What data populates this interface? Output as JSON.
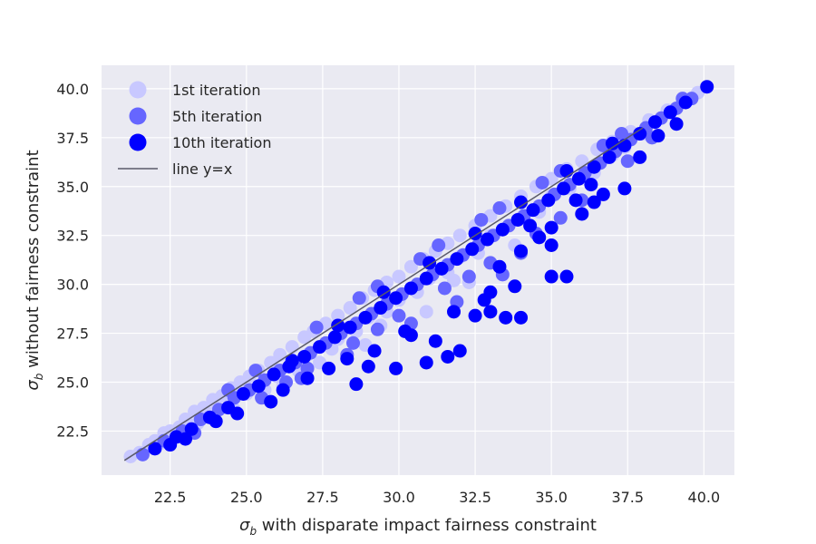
{
  "chart_data": {
    "type": "scatter",
    "title": "",
    "xlabel": "with disparate impact fairness constraint",
    "ylabel": "without fairness constraint",
    "axis_symbol": "σ",
    "axis_symbol_sub": "b",
    "xlim": [
      20.25,
      41.0
    ],
    "ylim": [
      20.25,
      41.2
    ],
    "xticks": [
      "22.5",
      "25.0",
      "27.5",
      "30.0",
      "32.5",
      "35.0",
      "37.5",
      "40.0"
    ],
    "yticks": [
      "22.5",
      "25.0",
      "27.5",
      "30.0",
      "32.5",
      "35.0",
      "37.5",
      "40.0"
    ],
    "grid": true,
    "legend_position": "top-left",
    "reference_line": {
      "name": "line y=x",
      "from": [
        21.0,
        21.0
      ],
      "to": [
        38.0,
        38.0
      ],
      "color": "#5a5a6a"
    },
    "series": [
      {
        "name": "1st iteration",
        "color": "#c8c8ff",
        "points": [
          [
            21.2,
            21.2
          ],
          [
            21.5,
            21.4
          ],
          [
            21.8,
            21.8
          ],
          [
            22.0,
            22.0
          ],
          [
            22.3,
            22.4
          ],
          [
            22.5,
            22.5
          ],
          [
            22.8,
            22.7
          ],
          [
            23.0,
            23.1
          ],
          [
            23.3,
            23.5
          ],
          [
            23.6,
            23.7
          ],
          [
            23.9,
            24.1
          ],
          [
            24.2,
            24.3
          ],
          [
            24.5,
            24.7
          ],
          [
            24.8,
            25.0
          ],
          [
            25.1,
            25.3
          ],
          [
            25.4,
            25.6
          ],
          [
            25.8,
            26.0
          ],
          [
            26.1,
            26.4
          ],
          [
            26.5,
            26.8
          ],
          [
            26.9,
            27.3
          ],
          [
            27.2,
            27.6
          ],
          [
            27.6,
            28.0
          ],
          [
            28.0,
            28.4
          ],
          [
            28.4,
            28.8
          ],
          [
            28.8,
            29.3
          ],
          [
            29.2,
            29.7
          ],
          [
            29.6,
            30.1
          ],
          [
            30.0,
            30.4
          ],
          [
            30.4,
            30.9
          ],
          [
            30.8,
            31.3
          ],
          [
            31.2,
            31.7
          ],
          [
            31.6,
            32.1
          ],
          [
            32.0,
            32.5
          ],
          [
            32.5,
            33.0
          ],
          [
            33.0,
            33.5
          ],
          [
            33.5,
            34.0
          ],
          [
            34.0,
            34.5
          ],
          [
            34.5,
            35.0
          ],
          [
            35.0,
            35.4
          ],
          [
            35.5,
            35.9
          ],
          [
            36.0,
            36.3
          ],
          [
            36.5,
            36.9
          ],
          [
            37.0,
            37.3
          ],
          [
            37.6,
            37.8
          ],
          [
            38.2,
            38.4
          ],
          [
            38.8,
            38.9
          ],
          [
            39.3,
            39.4
          ],
          [
            39.8,
            39.8
          ],
          [
            22.2,
            21.9
          ],
          [
            23.1,
            22.6
          ],
          [
            24.0,
            23.5
          ],
          [
            25.0,
            24.4
          ],
          [
            26.0,
            25.3
          ],
          [
            27.0,
            26.4
          ],
          [
            28.0,
            27.2
          ],
          [
            29.0,
            28.3
          ],
          [
            30.0,
            29.2
          ],
          [
            31.0,
            30.3
          ],
          [
            32.0,
            31.4
          ],
          [
            33.0,
            32.5
          ],
          [
            34.0,
            33.4
          ],
          [
            35.0,
            34.5
          ],
          [
            36.0,
            35.5
          ],
          [
            37.0,
            36.6
          ],
          [
            38.0,
            37.7
          ],
          [
            24.6,
            23.6
          ],
          [
            26.7,
            25.6
          ],
          [
            28.6,
            27.6
          ],
          [
            30.6,
            29.6
          ],
          [
            32.6,
            31.6
          ],
          [
            34.6,
            33.7
          ],
          [
            36.4,
            35.7
          ],
          [
            23.4,
            22.9
          ],
          [
            25.6,
            24.6
          ],
          [
            27.8,
            26.7
          ],
          [
            29.6,
            28.6
          ],
          [
            31.6,
            30.6
          ],
          [
            33.4,
            32.8
          ],
          [
            35.6,
            34.9
          ],
          [
            37.4,
            37.0
          ],
          [
            26.2,
            24.8
          ],
          [
            29.4,
            27.9
          ],
          [
            31.8,
            30.2
          ],
          [
            27.4,
            26.0
          ],
          [
            28.9,
            26.9
          ],
          [
            30.9,
            28.6
          ],
          [
            32.3,
            30.1
          ],
          [
            33.8,
            32.0
          ]
        ]
      },
      {
        "name": "5th iteration",
        "color": "#6666ff",
        "points": [
          [
            21.6,
            21.3
          ],
          [
            22.3,
            22.0
          ],
          [
            22.9,
            22.5
          ],
          [
            23.5,
            23.1
          ],
          [
            24.1,
            23.6
          ],
          [
            24.6,
            24.2
          ],
          [
            25.1,
            24.6
          ],
          [
            25.6,
            25.1
          ],
          [
            26.1,
            25.6
          ],
          [
            26.6,
            26.0
          ],
          [
            27.1,
            26.5
          ],
          [
            27.6,
            27.0
          ],
          [
            28.1,
            27.5
          ],
          [
            28.6,
            28.0
          ],
          [
            29.1,
            28.5
          ],
          [
            29.6,
            29.0
          ],
          [
            30.1,
            29.5
          ],
          [
            30.6,
            30.0
          ],
          [
            31.1,
            30.5
          ],
          [
            31.6,
            31.0
          ],
          [
            32.1,
            31.5
          ],
          [
            32.6,
            32.0
          ],
          [
            33.1,
            32.5
          ],
          [
            33.6,
            33.0
          ],
          [
            34.1,
            33.5
          ],
          [
            34.6,
            34.0
          ],
          [
            35.1,
            34.6
          ],
          [
            35.6,
            35.1
          ],
          [
            36.1,
            35.7
          ],
          [
            36.6,
            36.2
          ],
          [
            37.1,
            36.8
          ],
          [
            37.6,
            37.4
          ],
          [
            38.1,
            38.0
          ],
          [
            38.6,
            38.5
          ],
          [
            39.1,
            39.0
          ],
          [
            39.6,
            39.5
          ],
          [
            24.0,
            23.0
          ],
          [
            25.5,
            24.2
          ],
          [
            27.0,
            25.7
          ],
          [
            28.5,
            27.0
          ],
          [
            30.0,
            28.4
          ],
          [
            31.5,
            29.8
          ],
          [
            33.0,
            31.1
          ],
          [
            34.5,
            32.6
          ],
          [
            36.0,
            34.3
          ],
          [
            37.5,
            36.3
          ],
          [
            23.3,
            22.4
          ],
          [
            26.3,
            25.0
          ],
          [
            29.3,
            27.7
          ],
          [
            32.3,
            30.4
          ],
          [
            35.3,
            33.4
          ],
          [
            38.3,
            37.5
          ],
          [
            26.8,
            25.2
          ],
          [
            28.3,
            26.4
          ],
          [
            30.4,
            28.0
          ],
          [
            31.9,
            29.1
          ],
          [
            33.4,
            30.5
          ],
          [
            34.0,
            31.6
          ],
          [
            25.3,
            25.6
          ],
          [
            27.3,
            27.8
          ],
          [
            29.3,
            29.9
          ],
          [
            31.3,
            32.0
          ],
          [
            33.3,
            33.9
          ],
          [
            35.3,
            35.8
          ],
          [
            37.3,
            37.7
          ],
          [
            39.3,
            39.5
          ],
          [
            24.4,
            24.6
          ],
          [
            28.7,
            29.3
          ],
          [
            30.7,
            31.3
          ],
          [
            32.7,
            33.3
          ],
          [
            34.7,
            35.2
          ],
          [
            36.7,
            37.1
          ]
        ]
      },
      {
        "name": "10th iteration",
        "color": "#0000ff",
        "points": [
          [
            22.0,
            21.6
          ],
          [
            22.7,
            22.2
          ],
          [
            23.2,
            22.6
          ],
          [
            23.8,
            23.2
          ],
          [
            24.4,
            23.7
          ],
          [
            24.9,
            24.4
          ],
          [
            25.4,
            24.8
          ],
          [
            25.9,
            25.4
          ],
          [
            26.4,
            25.8
          ],
          [
            26.9,
            26.3
          ],
          [
            27.4,
            26.8
          ],
          [
            27.9,
            27.3
          ],
          [
            28.4,
            27.8
          ],
          [
            28.9,
            28.3
          ],
          [
            29.4,
            28.8
          ],
          [
            29.9,
            29.3
          ],
          [
            30.4,
            29.8
          ],
          [
            30.9,
            30.3
          ],
          [
            31.4,
            30.8
          ],
          [
            31.9,
            31.3
          ],
          [
            32.4,
            31.8
          ],
          [
            32.9,
            32.3
          ],
          [
            33.4,
            32.8
          ],
          [
            33.9,
            33.3
          ],
          [
            34.4,
            33.8
          ],
          [
            34.9,
            34.3
          ],
          [
            35.4,
            34.9
          ],
          [
            35.9,
            35.4
          ],
          [
            36.4,
            36.0
          ],
          [
            36.9,
            36.5
          ],
          [
            37.4,
            37.1
          ],
          [
            37.9,
            37.7
          ],
          [
            38.4,
            38.3
          ],
          [
            38.9,
            38.8
          ],
          [
            39.4,
            39.3
          ],
          [
            40.1,
            40.1
          ],
          [
            23.0,
            22.1
          ],
          [
            24.7,
            23.4
          ],
          [
            26.2,
            24.6
          ],
          [
            27.7,
            25.7
          ],
          [
            29.2,
            26.6
          ],
          [
            30.2,
            27.6
          ],
          [
            31.2,
            27.1
          ],
          [
            31.6,
            26.3
          ],
          [
            32.0,
            26.6
          ],
          [
            30.9,
            26.0
          ],
          [
            29.9,
            25.7
          ],
          [
            29.0,
            25.8
          ],
          [
            28.6,
            24.9
          ],
          [
            33.0,
            28.6
          ],
          [
            33.5,
            28.3
          ],
          [
            34.0,
            28.3
          ],
          [
            32.5,
            28.4
          ],
          [
            33.0,
            29.6
          ],
          [
            33.8,
            29.9
          ],
          [
            35.0,
            30.4
          ],
          [
            35.5,
            30.4
          ],
          [
            34.0,
            31.7
          ],
          [
            35.0,
            32.9
          ],
          [
            36.0,
            33.6
          ],
          [
            36.7,
            34.6
          ],
          [
            37.4,
            34.9
          ],
          [
            36.4,
            34.2
          ],
          [
            35.0,
            32.0
          ],
          [
            34.6,
            32.4
          ],
          [
            33.3,
            30.9
          ],
          [
            32.8,
            29.2
          ],
          [
            31.8,
            28.6
          ],
          [
            30.4,
            27.4
          ],
          [
            28.3,
            26.2
          ],
          [
            27.0,
            25.2
          ],
          [
            25.8,
            24.0
          ],
          [
            24.0,
            23.0
          ],
          [
            22.5,
            21.8
          ],
          [
            38.5,
            37.6
          ],
          [
            39.1,
            38.2
          ],
          [
            37.9,
            36.5
          ],
          [
            36.3,
            35.1
          ],
          [
            35.8,
            34.3
          ],
          [
            34.3,
            33.0
          ],
          [
            26.5,
            26.1
          ],
          [
            28.0,
            27.9
          ],
          [
            29.5,
            29.6
          ],
          [
            31.0,
            31.1
          ],
          [
            32.5,
            32.6
          ],
          [
            34.0,
            34.2
          ],
          [
            35.5,
            35.8
          ],
          [
            37.0,
            37.2
          ]
        ]
      }
    ]
  }
}
